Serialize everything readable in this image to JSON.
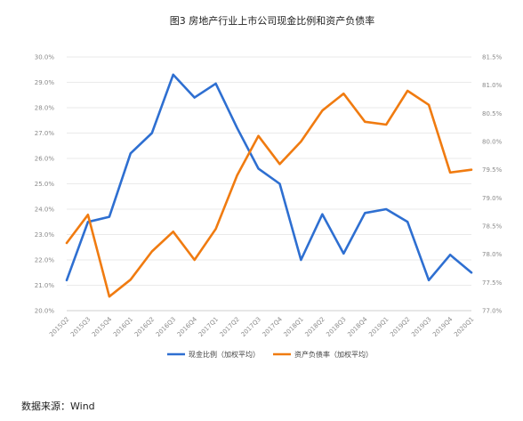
{
  "chart_data": {
    "type": "line",
    "title": "图3 房地产行业上市公司现金比例和资产负债率",
    "categories": [
      "2015Q2",
      "2015Q3",
      "2015Q4",
      "2016Q1",
      "2016Q2",
      "2016Q3",
      "2016Q4",
      "2017Q1",
      "2017Q2",
      "2017Q3",
      "2017Q4",
      "2018Q1",
      "2018Q2",
      "2018Q3",
      "2018Q4",
      "2019Q1",
      "2019Q2",
      "2019Q3",
      "2019Q4",
      "2020Q1"
    ],
    "y_left": {
      "ylim": [
        20.0,
        30.0
      ],
      "ticks": [
        "20.0%",
        "21.0%",
        "22.0%",
        "23.0%",
        "24.0%",
        "25.0%",
        "26.0%",
        "27.0%",
        "28.0%",
        "29.0%",
        "30.0%"
      ]
    },
    "y_right": {
      "ylim": [
        77.0,
        81.5
      ],
      "ticks": [
        "77.0%",
        "77.5%",
        "78.0%",
        "78.5%",
        "79.0%",
        "79.5%",
        "80.0%",
        "80.5%",
        "81.0%",
        "81.5%"
      ]
    },
    "grid": true,
    "legend_position": "bottom",
    "series": [
      {
        "name": "现金比例（加权平均）",
        "axis": "left",
        "color": "#2e6fd1",
        "values": [
          21.2,
          23.5,
          23.7,
          26.2,
          27.0,
          29.3,
          28.4,
          28.95,
          27.2,
          25.6,
          25.0,
          22.0,
          23.8,
          22.25,
          23.85,
          24.0,
          23.5,
          21.2,
          22.2,
          21.5
        ]
      },
      {
        "name": "资产负债率（加权平均）",
        "axis": "right",
        "color": "#f07b10",
        "values": [
          78.2,
          78.7,
          77.25,
          77.55,
          78.05,
          78.4,
          77.9,
          78.45,
          79.4,
          80.1,
          79.6,
          80.0,
          80.55,
          80.85,
          80.35,
          80.3,
          80.9,
          80.65,
          79.45,
          79.5
        ]
      }
    ]
  },
  "source_label": "数据来源：Wind"
}
